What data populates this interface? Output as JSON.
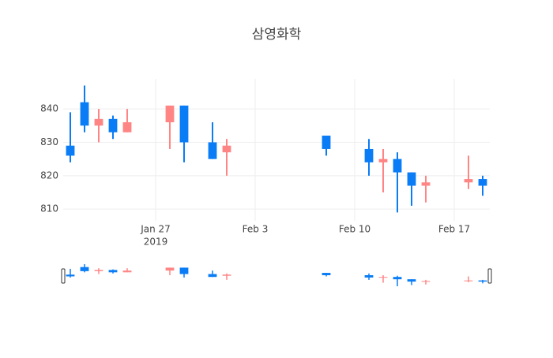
{
  "chart_data": {
    "type": "candlestick",
    "title": "삼영화학",
    "x": [
      "2019-01-21",
      "2019-01-22",
      "2019-01-23",
      "2019-01-24",
      "2019-01-25",
      "2019-01-28",
      "2019-01-29",
      "2019-01-31",
      "2019-02-01",
      "2019-02-08",
      "2019-02-11",
      "2019-02-12",
      "2019-02-13",
      "2019-02-14",
      "2019-02-15",
      "2019-02-18",
      "2019-02-19"
    ],
    "open": [
      829,
      842,
      835,
      837,
      833,
      836,
      841,
      830,
      827,
      832,
      828,
      824,
      825,
      821,
      817,
      818,
      819
    ],
    "high": [
      839,
      847,
      840,
      838,
      840,
      841,
      841,
      836,
      831,
      832,
      831,
      828,
      827,
      821,
      820,
      826,
      820
    ],
    "low": [
      824,
      833,
      830,
      831,
      833,
      828,
      824,
      825,
      820,
      826,
      820,
      815,
      809,
      811,
      812,
      816,
      814
    ],
    "close": [
      826,
      835,
      837,
      833,
      836,
      841,
      830,
      825,
      829,
      828,
      824,
      825,
      821,
      817,
      818,
      819,
      817
    ],
    "increasing_color": "#ff8585",
    "decreasing_color": "#0a7cf5",
    "xlim": [
      "2019-01-20T12:00",
      "2019-02-19T12:00"
    ],
    "xticks": [
      {
        "value": "2019-01-27",
        "label": "Jan 27",
        "sublabel": "2019"
      },
      {
        "value": "2019-02-03",
        "label": "Feb 3"
      },
      {
        "value": "2019-02-10",
        "label": "Feb 10"
      },
      {
        "value": "2019-02-17",
        "label": "Feb 17"
      }
    ],
    "ylim": [
      806.5,
      849
    ],
    "yticks": [
      810,
      820,
      830,
      840
    ],
    "grid": true,
    "rangeslider": true
  }
}
